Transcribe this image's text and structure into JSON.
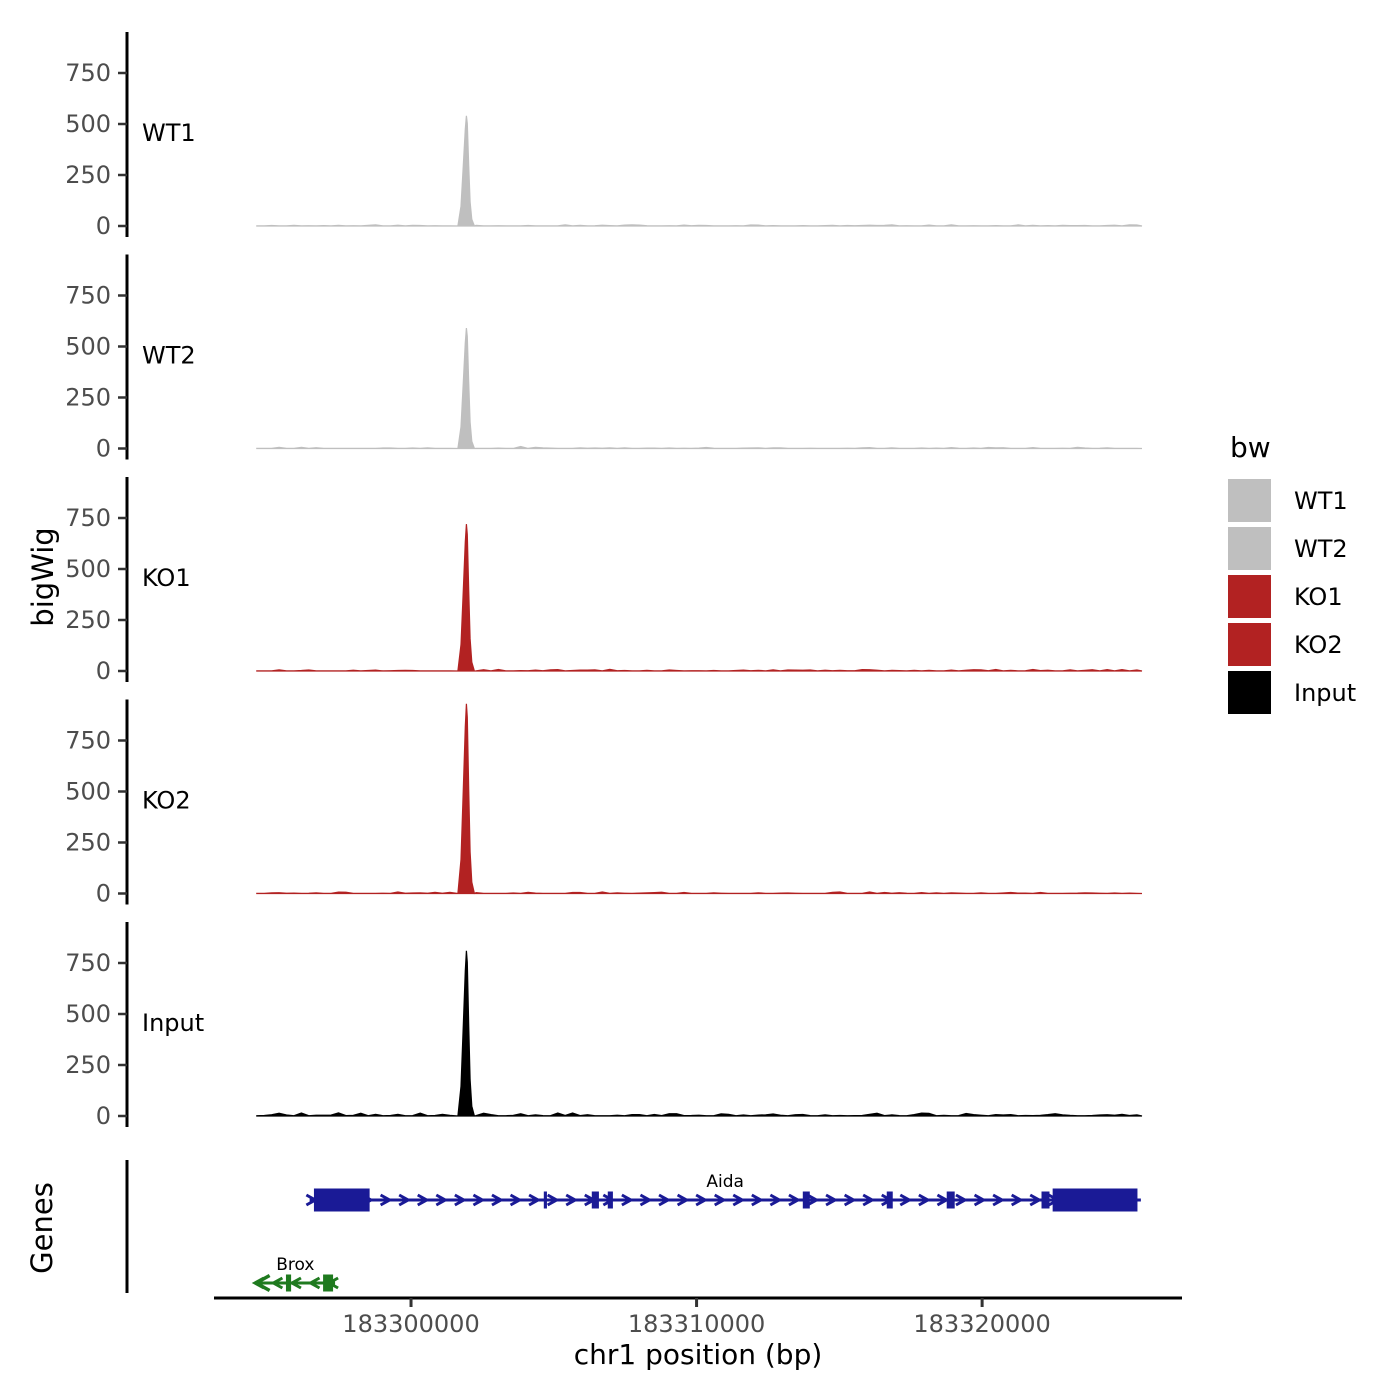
{
  "figure": {
    "y_axis_label": "bigWig",
    "genes_axis_label": "Genes",
    "x_axis_label": "chr1 position (bp)"
  },
  "legend": {
    "title": "bw",
    "items": [
      {
        "label": "WT1",
        "color": "#bfbfbf"
      },
      {
        "label": "WT2",
        "color": "#bfbfbf"
      },
      {
        "label": "KO1",
        "color": "#b22222"
      },
      {
        "label": "KO2",
        "color": "#b22222"
      },
      {
        "label": "Input",
        "color": "#000000"
      }
    ]
  },
  "chart_data": {
    "type": "area",
    "title": "",
    "xlabel": "chr1 position (bp)",
    "ylabel": "bigWig",
    "x": {
      "chrom": "chr1",
      "ticks": [
        183300000,
        183310000,
        183320000
      ],
      "range": [
        183293100,
        183327000
      ],
      "data_range": [
        183294600,
        183325600
      ],
      "grid": false
    },
    "y": {
      "ticks": [
        0,
        250,
        500,
        750
      ],
      "max": 1000
    },
    "tracks": [
      {
        "name": "WT1",
        "color": "#bfbfbf",
        "peak_center_bp": 183301960,
        "peak_height": 540,
        "noise_amp": 6,
        "seed": 11
      },
      {
        "name": "WT2",
        "color": "#bfbfbf",
        "peak_center_bp": 183301960,
        "peak_height": 590,
        "noise_amp": 6,
        "seed": 27
      },
      {
        "name": "KO1",
        "color": "#b22222",
        "peak_center_bp": 183301960,
        "peak_height": 720,
        "noise_amp": 8,
        "seed": 43
      },
      {
        "name": "KO2",
        "color": "#b22222",
        "peak_center_bp": 183301960,
        "peak_height": 930,
        "noise_amp": 8,
        "seed": 59
      },
      {
        "name": "Input",
        "color": "#000000",
        "peak_center_bp": 183301960,
        "peak_height": 810,
        "noise_amp": 16,
        "seed": 71
      }
    ],
    "peak_profile": [
      [
        -320,
        0
      ],
      [
        -210,
        0.18
      ],
      [
        -130,
        0.55
      ],
      [
        -60,
        0.88
      ],
      [
        -20,
        1
      ],
      [
        10,
        0.93
      ],
      [
        60,
        0.55
      ],
      [
        110,
        0.22
      ],
      [
        170,
        0.06
      ],
      [
        260,
        0
      ]
    ],
    "genes": [
      {
        "name": "Aida",
        "strand": "+",
        "color": "#1a1a96",
        "start": 183296450,
        "end": 183325560,
        "label_bp": 183311000,
        "row": 0,
        "exons": [
          [
            183296600,
            183298550
          ],
          [
            183304650,
            183304760
          ],
          [
            183306330,
            183306580
          ],
          [
            183306890,
            183307070
          ],
          [
            183313720,
            183313965
          ],
          [
            183316660,
            183316870
          ],
          [
            183318760,
            183319040
          ],
          [
            183322080,
            183322360
          ],
          [
            183322470,
            183325440
          ]
        ]
      },
      {
        "name": "Brox",
        "strand": "-",
        "color": "#1f7a1f",
        "start": 183294610,
        "end": 183297340,
        "label_bp": 183295950,
        "row": 1,
        "exons": [
          [
            183295620,
            183295800
          ],
          [
            183296920,
            183297270
          ]
        ]
      }
    ]
  }
}
